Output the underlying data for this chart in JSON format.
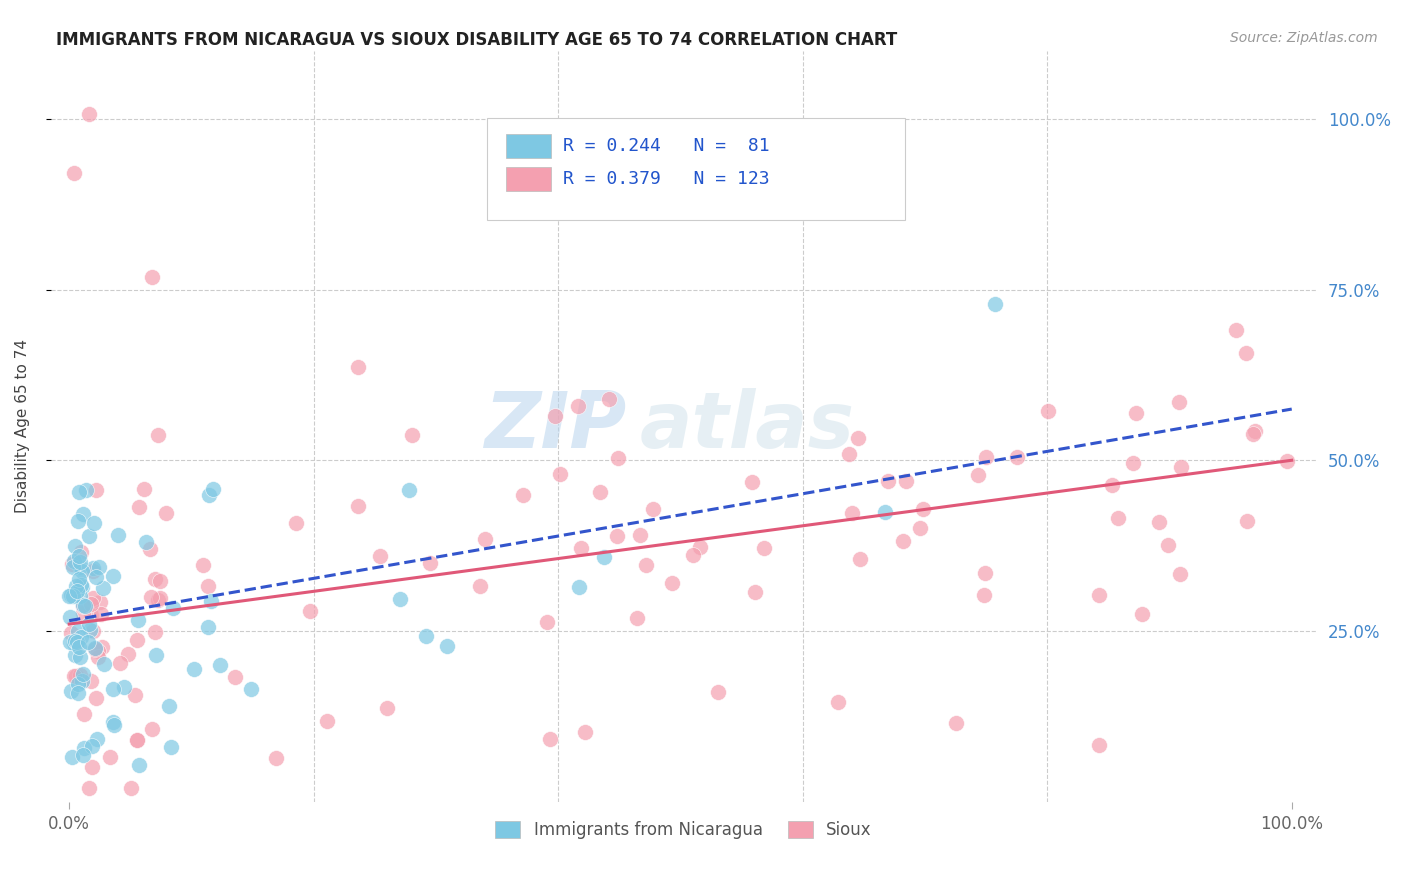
{
  "title": "IMMIGRANTS FROM NICARAGUA VS SIOUX DISABILITY AGE 65 TO 74 CORRELATION CHART",
  "source": "Source: ZipAtlas.com",
  "ylabel": "Disability Age 65 to 74",
  "legend_label1": "Immigrants from Nicaragua",
  "legend_label2": "Sioux",
  "legend_R1": "R = 0.244",
  "legend_N1": "N =  81",
  "legend_R2": "R = 0.379",
  "legend_N2": "N = 123",
  "color1": "#7ec8e3",
  "color2": "#f4a0b0",
  "trendline1_color": "#3355cc",
  "trendline2_color": "#e05878",
  "watermark_zip": "ZIP",
  "watermark_atlas": "atlas",
  "background_color": "#ffffff",
  "figsize": [
    14.06,
    8.92
  ],
  "dpi": 100
}
